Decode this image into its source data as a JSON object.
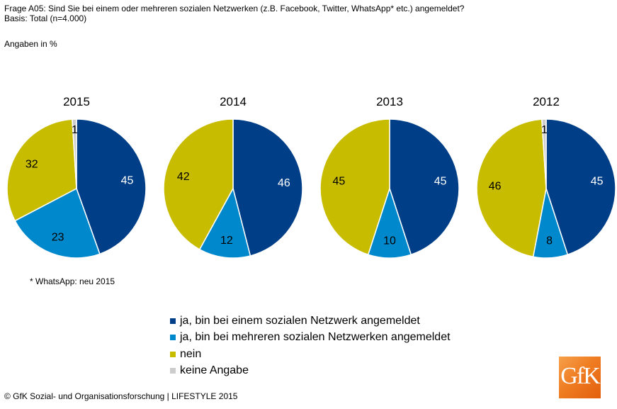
{
  "header": {
    "question": "Frage A05: Sind Sie bei einem oder mehreren sozialen Netzwerken (z.B. Facebook, Twitter, WhatsApp* etc.) angemeldet?",
    "basis": "Basis: Total (n=4.000)",
    "unit": "Angaben in %"
  },
  "note": "* WhatsApp: neu 2015",
  "footer": "© GfK Sozial- und Organisationsforschung | LIFESTYLE 2015",
  "logo": {
    "text": "GfK",
    "color": "#ef7d22"
  },
  "colors": {
    "ja_einem": "#003f87",
    "ja_mehreren": "#0088cc",
    "nein": "#c8bc00",
    "keine": "#cccccc"
  },
  "legend": [
    {
      "label": "ja, bin bei einem sozialen Netzwerk angemeldet",
      "color": "#003f87"
    },
    {
      "label": "ja, bin bei mehreren sozialen Netzwerken angemeldet",
      "color": "#0088cc"
    },
    {
      "label": "nein",
      "color": "#c8bc00"
    },
    {
      "label": "keine Angabe",
      "color": "#cccccc"
    }
  ],
  "chart_data": [
    {
      "type": "pie",
      "title": "2015",
      "slices": [
        {
          "name": "ja, bin bei einem sozialen Netzwerk angemeldet",
          "value": 45,
          "color": "#003f87",
          "label_color": "#ffffff"
        },
        {
          "name": "ja, bin bei mehreren sozialen Netzwerken angemeldet",
          "value": 23,
          "color": "#0088cc",
          "label_color": "#000000"
        },
        {
          "name": "nein",
          "value": 32,
          "color": "#c8bc00",
          "label_color": "#000000"
        },
        {
          "name": "keine Angabe",
          "value": 1,
          "color": "#cccccc",
          "label_color": "#000000"
        }
      ]
    },
    {
      "type": "pie",
      "title": "2014",
      "slices": [
        {
          "name": "ja, bin bei einem sozialen Netzwerk angemeldet",
          "value": 46,
          "color": "#003f87",
          "label_color": "#ffffff"
        },
        {
          "name": "ja, bin bei mehreren sozialen Netzwerken angemeldet",
          "value": 12,
          "color": "#0088cc",
          "label_color": "#000000"
        },
        {
          "name": "nein",
          "value": 42,
          "color": "#c8bc00",
          "label_color": "#000000"
        }
      ]
    },
    {
      "type": "pie",
      "title": "2013",
      "slices": [
        {
          "name": "ja, bin bei einem sozialen Netzwerk angemeldet",
          "value": 45,
          "color": "#003f87",
          "label_color": "#ffffff"
        },
        {
          "name": "ja, bin bei mehreren sozialen Netzwerken angemeldet",
          "value": 10,
          "color": "#0088cc",
          "label_color": "#000000"
        },
        {
          "name": "nein",
          "value": 45,
          "color": "#c8bc00",
          "label_color": "#000000"
        }
      ]
    },
    {
      "type": "pie",
      "title": "2012",
      "slices": [
        {
          "name": "ja, bin bei einem sozialen Netzwerk angemeldet",
          "value": 45,
          "color": "#003f87",
          "label_color": "#ffffff"
        },
        {
          "name": "ja, bin bei mehreren sozialen Netzwerken angemeldet",
          "value": 8,
          "color": "#0088cc",
          "label_color": "#000000"
        },
        {
          "name": "nein",
          "value": 46,
          "color": "#c8bc00",
          "label_color": "#000000"
        },
        {
          "name": "keine Angabe",
          "value": 1,
          "color": "#cccccc",
          "label_color": "#000000"
        }
      ]
    }
  ]
}
